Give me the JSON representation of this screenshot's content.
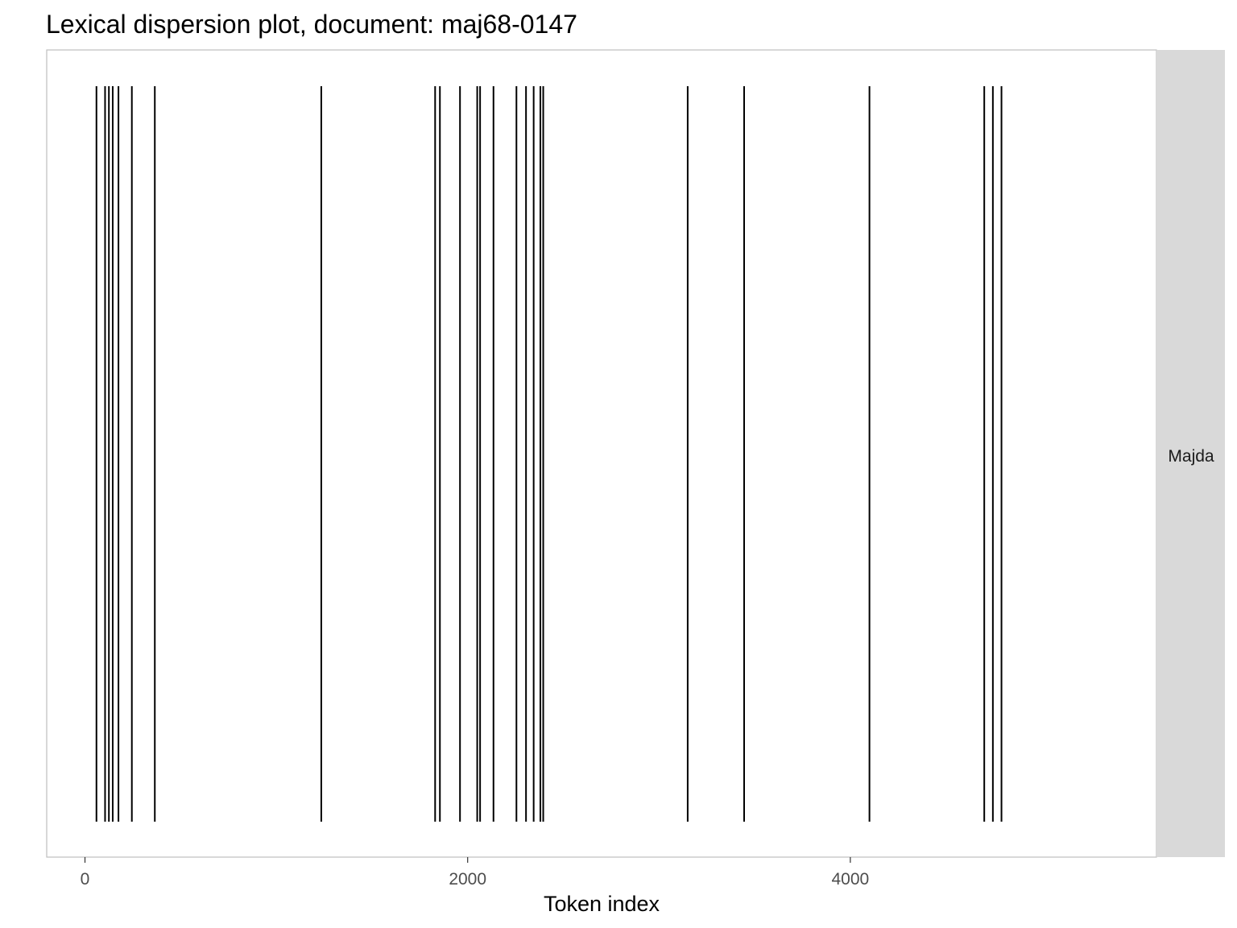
{
  "chart_data": {
    "type": "scatter",
    "title": "Lexical dispersion plot, document: maj68-0147",
    "xlabel": "Token index",
    "ylabel": "",
    "xlim": [
      -200,
      5600
    ],
    "xticks": [
      0,
      2000,
      4000
    ],
    "xtick_labels": [
      "0",
      "2000",
      "4000"
    ],
    "grid": false,
    "series": [
      {
        "name": "Majda",
        "mark": "vertical-line",
        "color": "#000000",
        "x": [
          60,
          105,
          125,
          145,
          175,
          245,
          365,
          1235,
          1830,
          1855,
          1960,
          2050,
          2065,
          2135,
          2255,
          2305,
          2345,
          2380,
          2395,
          3150,
          3445,
          4100,
          4700,
          4745,
          4790
        ]
      }
    ]
  },
  "colors": {
    "panel_border": "#bfbfbf",
    "strip_background": "#d9d9d9",
    "tick_color": "#333333",
    "mark_color": "#000000"
  }
}
